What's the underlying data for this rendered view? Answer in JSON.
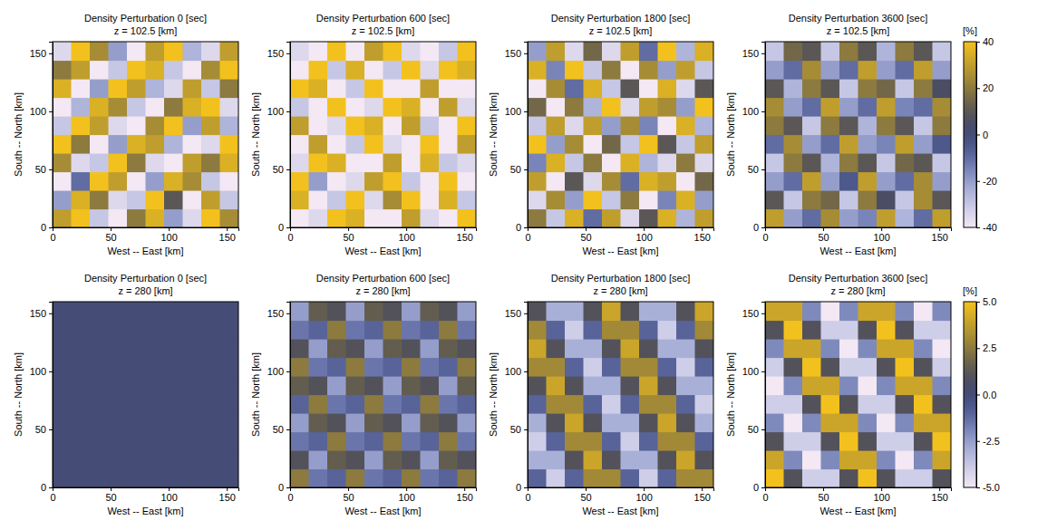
{
  "chart_data": [
    {
      "type": "heatmap",
      "title": "Density Perturbation 0 [sec]",
      "subtitle": "z = 102.5 [km]",
      "xlabel": "West -- East [km]",
      "ylabel": "South -- North [km]",
      "xlim": [
        0,
        160
      ],
      "ylim": [
        0,
        160
      ],
      "xticks": [
        0,
        50,
        100,
        150
      ],
      "yticks": [
        0,
        50,
        100,
        150
      ],
      "cells": [
        [
          30,
          40,
          -30,
          -40,
          20,
          35,
          -20,
          -35,
          40,
          25
        ],
        [
          -20,
          35,
          20,
          -35,
          -30,
          40,
          10,
          -40,
          30,
          -30
        ],
        [
          -40,
          -10,
          40,
          30,
          -40,
          -20,
          35,
          25,
          -30,
          -40
        ],
        [
          25,
          -35,
          -30,
          40,
          20,
          -35,
          -40,
          30,
          20,
          35
        ],
        [
          40,
          20,
          -40,
          -20,
          35,
          30,
          -25,
          -40,
          -35,
          40
        ],
        [
          -30,
          40,
          30,
          -35,
          -40,
          25,
          40,
          -20,
          30,
          -25
        ],
        [
          -40,
          -25,
          35,
          25,
          -30,
          -40,
          20,
          35,
          40,
          -35
        ],
        [
          35,
          -40,
          -20,
          40,
          30,
          -25,
          -35,
          30,
          -30,
          20
        ],
        [
          20,
          30,
          -40,
          -30,
          40,
          35,
          -30,
          -40,
          25,
          40
        ],
        [
          -35,
          40,
          25,
          -20,
          -40,
          30,
          40,
          -25,
          -35,
          30
        ]
      ]
    },
    {
      "type": "heatmap",
      "title": "Density Perturbation 600 [sec]",
      "subtitle": "z = 102.5 [km]",
      "xlabel": "West -- East [km]",
      "ylabel": "South -- North [km]",
      "xlim": [
        0,
        160
      ],
      "ylim": [
        0,
        160
      ],
      "xticks": [
        0,
        50,
        100,
        150
      ],
      "yticks": [
        0,
        50,
        100,
        150
      ],
      "cells": [
        [
          -40,
          -35,
          40,
          35,
          -40,
          -40,
          30,
          -35,
          -40,
          40
        ],
        [
          35,
          -40,
          -30,
          40,
          -35,
          25,
          40,
          -40,
          35,
          -30
        ],
        [
          40,
          -20,
          -40,
          -35,
          30,
          40,
          -30,
          -40,
          40,
          -40
        ],
        [
          -35,
          40,
          35,
          -40,
          -40,
          30,
          -40,
          35,
          -30,
          -35
        ],
        [
          -40,
          30,
          -40,
          -30,
          40,
          -35,
          -40,
          40,
          -40,
          30
        ],
        [
          30,
          -40,
          -35,
          40,
          35,
          -40,
          30,
          -30,
          -40,
          40
        ],
        [
          -30,
          -40,
          40,
          -40,
          -35,
          40,
          35,
          -40,
          30,
          -35
        ],
        [
          40,
          35,
          -40,
          -30,
          40,
          -40,
          -40,
          30,
          -40,
          -40
        ],
        [
          -40,
          40,
          -30,
          35,
          -40,
          -30,
          40,
          -35,
          40,
          35
        ],
        [
          -35,
          -40,
          40,
          -40,
          30,
          40,
          -35,
          -40,
          -30,
          40
        ]
      ]
    },
    {
      "type": "heatmap",
      "title": "Density Perturbation 1800 [sec]",
      "subtitle": "z = 102.5 [km]",
      "xlabel": "West -- East [km]",
      "ylabel": "South -- North [km]",
      "xlim": [
        0,
        160
      ],
      "ylim": [
        0,
        160
      ],
      "xticks": [
        0,
        50,
        100,
        150
      ],
      "yticks": [
        0,
        50,
        100,
        150
      ],
      "cells": [
        [
          20,
          -30,
          35,
          -10,
          30,
          -35,
          10,
          35,
          -25,
          30
        ],
        [
          -35,
          25,
          -20,
          40,
          -30,
          20,
          -40,
          -15,
          35,
          -20
        ],
        [
          30,
          -40,
          10,
          -35,
          25,
          -10,
          35,
          30,
          -40,
          15
        ],
        [
          -15,
          35,
          -30,
          20,
          -40,
          35,
          -25,
          -35,
          20,
          -35
        ],
        [
          40,
          -20,
          25,
          -40,
          15,
          -30,
          40,
          10,
          -30,
          30
        ],
        [
          -30,
          30,
          -35,
          30,
          -20,
          25,
          -15,
          -40,
          35,
          -25
        ],
        [
          15,
          -40,
          20,
          -25,
          40,
          -35,
          30,
          25,
          -20,
          40
        ],
        [
          -40,
          25,
          -10,
          35,
          -30,
          10,
          -40,
          35,
          -35,
          10
        ],
        [
          35,
          -15,
          40,
          -30,
          20,
          -40,
          25,
          -20,
          30,
          -30
        ],
        [
          -20,
          30,
          -35,
          15,
          -35,
          30,
          -10,
          40,
          -25,
          35
        ]
      ]
    },
    {
      "type": "heatmap",
      "title": "Density Perturbation 3600 [sec]",
      "subtitle": "z = 102.5 [km]",
      "xlabel": "West -- East [km]",
      "ylabel": "South -- North [km]",
      "xlim": [
        0,
        160
      ],
      "ylim": [
        0,
        160
      ],
      "xticks": [
        0,
        50,
        100,
        150
      ],
      "yticks": [
        0,
        50,
        100,
        150
      ],
      "cells": [
        [
          30,
          -20,
          -10,
          25,
          -20,
          -15,
          30,
          -25,
          -10,
          30
        ],
        [
          10,
          -30,
          20,
          15,
          -30,
          20,
          5,
          -30,
          25,
          10
        ],
        [
          -20,
          -10,
          30,
          -20,
          -5,
          30,
          -20,
          -10,
          25,
          -20
        ],
        [
          -30,
          20,
          10,
          -25,
          20,
          10,
          -30,
          15,
          10,
          -30
        ],
        [
          -10,
          25,
          -20,
          -10,
          30,
          -20,
          -15,
          30,
          -20,
          -5
        ],
        [
          20,
          10,
          -30,
          20,
          10,
          -25,
          20,
          10,
          -30,
          20
        ],
        [
          25,
          -20,
          -10,
          30,
          -20,
          -10,
          30,
          -15,
          -10,
          25
        ],
        [
          10,
          -25,
          20,
          10,
          -30,
          20,
          15,
          -30,
          20,
          5
        ],
        [
          -20,
          -10,
          25,
          -20,
          -10,
          30,
          -20,
          -10,
          30,
          -20
        ],
        [
          -30,
          15,
          10,
          -30,
          20,
          10,
          -25,
          20,
          10,
          -30
        ]
      ],
      "colorbar": {
        "label": "[%]",
        "range": [
          -40,
          40
        ],
        "ticks": [
          -40,
          -20,
          0,
          20,
          40
        ]
      }
    },
    {
      "type": "heatmap",
      "title": "Density Perturbation 0 [sec]",
      "subtitle": "z = 280 [km]",
      "xlabel": "West -- East [km]",
      "ylabel": "South -- North [km]",
      "xlim": [
        0,
        160
      ],
      "ylim": [
        0,
        160
      ],
      "xticks": [
        0,
        50,
        100,
        150
      ],
      "yticks": [
        0,
        50,
        100,
        150
      ],
      "cells": [
        [
          0,
          0,
          0,
          0,
          0,
          0,
          0,
          0,
          0,
          0
        ],
        [
          0,
          0,
          0,
          0,
          0,
          0,
          0,
          0,
          0,
          0
        ],
        [
          0,
          0,
          0,
          0,
          0,
          0,
          0,
          0,
          0,
          0
        ],
        [
          0,
          0,
          0,
          0,
          0,
          0,
          0,
          0,
          0,
          0
        ],
        [
          0,
          0,
          0,
          0,
          0,
          0,
          0,
          0,
          0,
          0
        ],
        [
          0,
          0,
          0,
          0,
          0,
          0,
          0,
          0,
          0,
          0
        ],
        [
          0,
          0,
          0,
          0,
          0,
          0,
          0,
          0,
          0,
          0
        ],
        [
          0,
          0,
          0,
          0,
          0,
          0,
          0,
          0,
          0,
          0
        ],
        [
          0,
          0,
          0,
          0,
          0,
          0,
          0,
          0,
          0,
          0
        ],
        [
          0,
          0,
          0,
          0,
          0,
          0,
          0,
          0,
          0,
          0
        ]
      ]
    },
    {
      "type": "heatmap",
      "title": "Density Perturbation 600 [sec]",
      "subtitle": "z = 280 [km]",
      "xlabel": "West -- East [km]",
      "ylabel": "South -- North [km]",
      "xlim": [
        0,
        160
      ],
      "ylim": [
        0,
        160
      ],
      "xticks": [
        0,
        50,
        100,
        150
      ],
      "yticks": [
        0,
        50,
        100,
        150
      ],
      "cells": [
        [
          2.5,
          -1.5,
          -1,
          2.5,
          -1.5,
          -1,
          2.5,
          -1.5,
          -1,
          2.5
        ],
        [
          1,
          -2.5,
          1.5,
          1,
          -2.5,
          1.5,
          1,
          -2.5,
          1.5,
          1
        ],
        [
          -1.5,
          -1,
          2.5,
          -1.5,
          -1,
          2.5,
          -1.5,
          -1,
          2.5,
          -1.5
        ],
        [
          -2.5,
          1.5,
          1,
          -2.5,
          1.5,
          1,
          -2.5,
          1.5,
          1,
          -2.5
        ],
        [
          -1,
          2.5,
          -1.5,
          -1,
          2.5,
          -1.5,
          -1,
          2.5,
          -1.5,
          -1
        ],
        [
          1.5,
          1,
          -2.5,
          1.5,
          1,
          -2.5,
          1.5,
          1,
          -2.5,
          1.5
        ],
        [
          2.5,
          -1.5,
          -1,
          2.5,
          -1.5,
          -1,
          2.5,
          -1.5,
          -1,
          2.5
        ],
        [
          1,
          -2.5,
          1.5,
          1,
          -2.5,
          1.5,
          1,
          -2.5,
          1.5,
          1
        ],
        [
          -1.5,
          -1,
          2.5,
          -1.5,
          -1,
          2.5,
          -1.5,
          -1,
          2.5,
          -1.5
        ],
        [
          -2.5,
          1.5,
          1,
          -2.5,
          1.5,
          1,
          -2.5,
          1.5,
          1,
          -2.5
        ]
      ]
    },
    {
      "type": "heatmap",
      "title": "Density Perturbation 1800 [sec]",
      "subtitle": "z = 280 [km]",
      "xlabel": "West -- East [km]",
      "ylabel": "South -- North [km]",
      "xlim": [
        0,
        160
      ],
      "ylim": [
        0,
        160
      ],
      "xticks": [
        0,
        50,
        100,
        150
      ],
      "yticks": [
        0,
        50,
        100,
        150
      ],
      "cells": [
        [
          -1,
          -4,
          -1,
          3,
          3,
          -1,
          -4,
          -1,
          3,
          3
        ],
        [
          -3,
          -3,
          1,
          4,
          1,
          -3,
          -3,
          1,
          4,
          1
        ],
        [
          -4,
          -1,
          3,
          3,
          -1,
          -4,
          -1,
          3,
          3,
          -1
        ],
        [
          -3,
          1,
          4,
          1,
          -3,
          -3,
          1,
          4,
          1,
          -3
        ],
        [
          -1,
          3,
          3,
          -1,
          -4,
          -1,
          3,
          3,
          -1,
          -4
        ],
        [
          1,
          4,
          1,
          -3,
          -3,
          1,
          4,
          1,
          -3,
          -3
        ],
        [
          3,
          3,
          -1,
          -4,
          -1,
          3,
          3,
          -1,
          -4,
          -1
        ],
        [
          4,
          1,
          -3,
          -3,
          1,
          4,
          1,
          -3,
          -3,
          1
        ],
        [
          3,
          -1,
          -4,
          -1,
          3,
          3,
          -1,
          -4,
          -1,
          3
        ],
        [
          1,
          -3,
          -3,
          1,
          4,
          1,
          -3,
          -3,
          1,
          4
        ]
      ]
    },
    {
      "type": "heatmap",
      "title": "Density Perturbation 3600 [sec]",
      "subtitle": "z = 280 [km]",
      "xlabel": "West -- East [km]",
      "ylabel": "South -- North [km]",
      "xlim": [
        0,
        160
      ],
      "ylim": [
        0,
        160
      ],
      "xticks": [
        0,
        50,
        100,
        150
      ],
      "yticks": [
        0,
        50,
        100,
        150
      ],
      "cells": [
        [
          5,
          1,
          -4,
          -4,
          1,
          5,
          1,
          -4,
          -4,
          1
        ],
        [
          4,
          -2,
          -5,
          -2,
          4,
          4,
          -2,
          -5,
          -2,
          4
        ],
        [
          1,
          -4,
          -4,
          1,
          5,
          1,
          -4,
          -4,
          1,
          5
        ],
        [
          -2,
          -5,
          -2,
          4,
          4,
          -2,
          -5,
          -2,
          4,
          4
        ],
        [
          -4,
          -4,
          1,
          5,
          1,
          -4,
          -4,
          1,
          5,
          1
        ],
        [
          -5,
          -2,
          4,
          4,
          -2,
          -5,
          -2,
          4,
          4,
          -2
        ],
        [
          -4,
          1,
          5,
          1,
          -4,
          -4,
          1,
          5,
          1,
          -4
        ],
        [
          -2,
          4,
          4,
          -2,
          -5,
          -2,
          4,
          4,
          -2,
          -5
        ],
        [
          1,
          5,
          1,
          -4,
          -4,
          1,
          5,
          1,
          -4,
          -4
        ],
        [
          4,
          4,
          -2,
          -5,
          -2,
          4,
          4,
          -2,
          -5,
          -2
        ]
      ],
      "colorbar": {
        "label": "[%]",
        "range": [
          -5,
          5
        ],
        "ticks": [
          {
            "value": -5,
            "label": "-5.0"
          },
          {
            "value": -2.5,
            "label": "-2.5"
          },
          {
            "value": 0,
            "label": "0.0"
          },
          {
            "value": 2.5,
            "label": "2.5"
          },
          {
            "value": 5,
            "label": "5.0"
          }
        ]
      }
    }
  ]
}
